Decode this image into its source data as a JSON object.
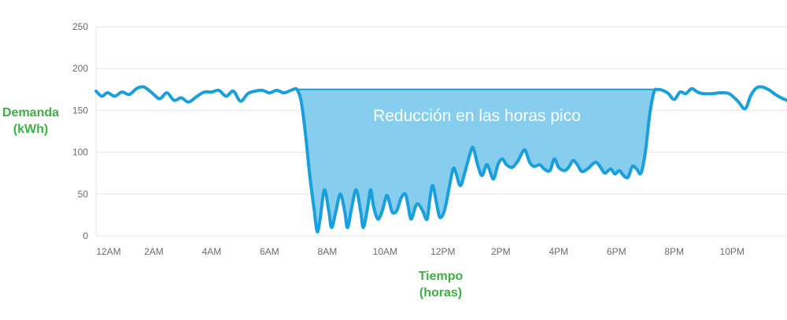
{
  "chart_data": {
    "type": "line",
    "ylabel": [
      "Demanda",
      "(kWh)"
    ],
    "xlabel": [
      "Tiempo",
      "(horas)"
    ],
    "ylim": [
      0,
      250
    ],
    "yticks": [
      0,
      50,
      100,
      150,
      200,
      250
    ],
    "xlim": [
      0,
      23.9
    ],
    "xticks": [
      {
        "label": "12AM",
        "x": 0
      },
      {
        "label": "2AM",
        "x": 2
      },
      {
        "label": "4AM",
        "x": 4
      },
      {
        "label": "6AM",
        "x": 6
      },
      {
        "label": "8AM",
        "x": 8
      },
      {
        "label": "10AM",
        "x": 10
      },
      {
        "label": "12PM",
        "x": 12
      },
      {
        "label": "2PM",
        "x": 14
      },
      {
        "label": "4PM",
        "x": 16
      },
      {
        "label": "6PM",
        "x": 18
      },
      {
        "label": "8PM",
        "x": 20
      },
      {
        "label": "10PM",
        "x": 22
      }
    ],
    "annotation": "Reducción en las horas pico",
    "reduction": {
      "level": 175,
      "start": 6.95,
      "end": 19.4
    },
    "series": [
      {
        "color": "#1a9fdd",
        "fill_color": "#86cdee",
        "points": [
          [
            0,
            173
          ],
          [
            0.2,
            167
          ],
          [
            0.4,
            171
          ],
          [
            0.65,
            167
          ],
          [
            0.9,
            172
          ],
          [
            1.15,
            169
          ],
          [
            1.4,
            176
          ],
          [
            1.65,
            178
          ],
          [
            1.9,
            172
          ],
          [
            2.2,
            164
          ],
          [
            2.45,
            171
          ],
          [
            2.7,
            162
          ],
          [
            2.95,
            165
          ],
          [
            3.2,
            160
          ],
          [
            3.5,
            167
          ],
          [
            3.75,
            172
          ],
          [
            4.0,
            172
          ],
          [
            4.25,
            174
          ],
          [
            4.5,
            167
          ],
          [
            4.75,
            173
          ],
          [
            5.0,
            161
          ],
          [
            5.25,
            170
          ],
          [
            5.5,
            173
          ],
          [
            5.75,
            174
          ],
          [
            6.0,
            171
          ],
          [
            6.25,
            174
          ],
          [
            6.5,
            171
          ],
          [
            6.75,
            174
          ],
          [
            6.95,
            175
          ],
          [
            7.1,
            160
          ],
          [
            7.25,
            120
          ],
          [
            7.4,
            70
          ],
          [
            7.55,
            30
          ],
          [
            7.65,
            5
          ],
          [
            7.75,
            20
          ],
          [
            7.9,
            55
          ],
          [
            8.05,
            30
          ],
          [
            8.15,
            10
          ],
          [
            8.3,
            30
          ],
          [
            8.45,
            50
          ],
          [
            8.6,
            30
          ],
          [
            8.7,
            10
          ],
          [
            8.85,
            35
          ],
          [
            9.0,
            55
          ],
          [
            9.15,
            30
          ],
          [
            9.25,
            10
          ],
          [
            9.4,
            35
          ],
          [
            9.5,
            55
          ],
          [
            9.6,
            35
          ],
          [
            9.75,
            20
          ],
          [
            9.9,
            30
          ],
          [
            10.05,
            48
          ],
          [
            10.15,
            40
          ],
          [
            10.25,
            28
          ],
          [
            10.4,
            30
          ],
          [
            10.55,
            45
          ],
          [
            10.7,
            50
          ],
          [
            10.8,
            35
          ],
          [
            10.9,
            20
          ],
          [
            11.05,
            35
          ],
          [
            11.15,
            38
          ],
          [
            11.3,
            30
          ],
          [
            11.45,
            20
          ],
          [
            11.55,
            45
          ],
          [
            11.65,
            60
          ],
          [
            11.8,
            35
          ],
          [
            11.9,
            22
          ],
          [
            12.05,
            30
          ],
          [
            12.2,
            55
          ],
          [
            12.35,
            80
          ],
          [
            12.45,
            75
          ],
          [
            12.6,
            60
          ],
          [
            12.75,
            75
          ],
          [
            12.95,
            100
          ],
          [
            13.05,
            105
          ],
          [
            13.2,
            85
          ],
          [
            13.35,
            72
          ],
          [
            13.5,
            85
          ],
          [
            13.6,
            80
          ],
          [
            13.75,
            68
          ],
          [
            13.9,
            85
          ],
          [
            14.05,
            92
          ],
          [
            14.2,
            85
          ],
          [
            14.4,
            82
          ],
          [
            14.6,
            90
          ],
          [
            14.75,
            100
          ],
          [
            14.85,
            102
          ],
          [
            15.0,
            88
          ],
          [
            15.15,
            83
          ],
          [
            15.35,
            85
          ],
          [
            15.5,
            80
          ],
          [
            15.7,
            78
          ],
          [
            15.85,
            92
          ],
          [
            16.0,
            82
          ],
          [
            16.2,
            78
          ],
          [
            16.35,
            82
          ],
          [
            16.5,
            90
          ],
          [
            16.65,
            85
          ],
          [
            16.8,
            77
          ],
          [
            17.0,
            80
          ],
          [
            17.15,
            85
          ],
          [
            17.3,
            88
          ],
          [
            17.45,
            82
          ],
          [
            17.6,
            75
          ],
          [
            17.8,
            80
          ],
          [
            17.95,
            74
          ],
          [
            18.1,
            78
          ],
          [
            18.25,
            72
          ],
          [
            18.4,
            70
          ],
          [
            18.55,
            83
          ],
          [
            18.7,
            80
          ],
          [
            18.85,
            75
          ],
          [
            19.0,
            100
          ],
          [
            19.15,
            145
          ],
          [
            19.3,
            172
          ],
          [
            19.4,
            175
          ],
          [
            19.6,
            174
          ],
          [
            19.8,
            170
          ],
          [
            20.0,
            163
          ],
          [
            20.2,
            172
          ],
          [
            20.4,
            170
          ],
          [
            20.6,
            176
          ],
          [
            20.8,
            172
          ],
          [
            21.0,
            170
          ],
          [
            21.3,
            170
          ],
          [
            21.6,
            171
          ],
          [
            21.9,
            170
          ],
          [
            22.2,
            161
          ],
          [
            22.45,
            152
          ],
          [
            22.65,
            168
          ],
          [
            22.85,
            177
          ],
          [
            23.05,
            178
          ],
          [
            23.3,
            174
          ],
          [
            23.5,
            169
          ],
          [
            23.7,
            165
          ],
          [
            23.9,
            162
          ]
        ]
      }
    ],
    "colors": {
      "line": "#1a9fdd",
      "fill": "#86cdee",
      "grid": "#e6e6e6",
      "axis_title": "#3cb043",
      "tick": "#6b6b6b"
    },
    "grid": true
  }
}
